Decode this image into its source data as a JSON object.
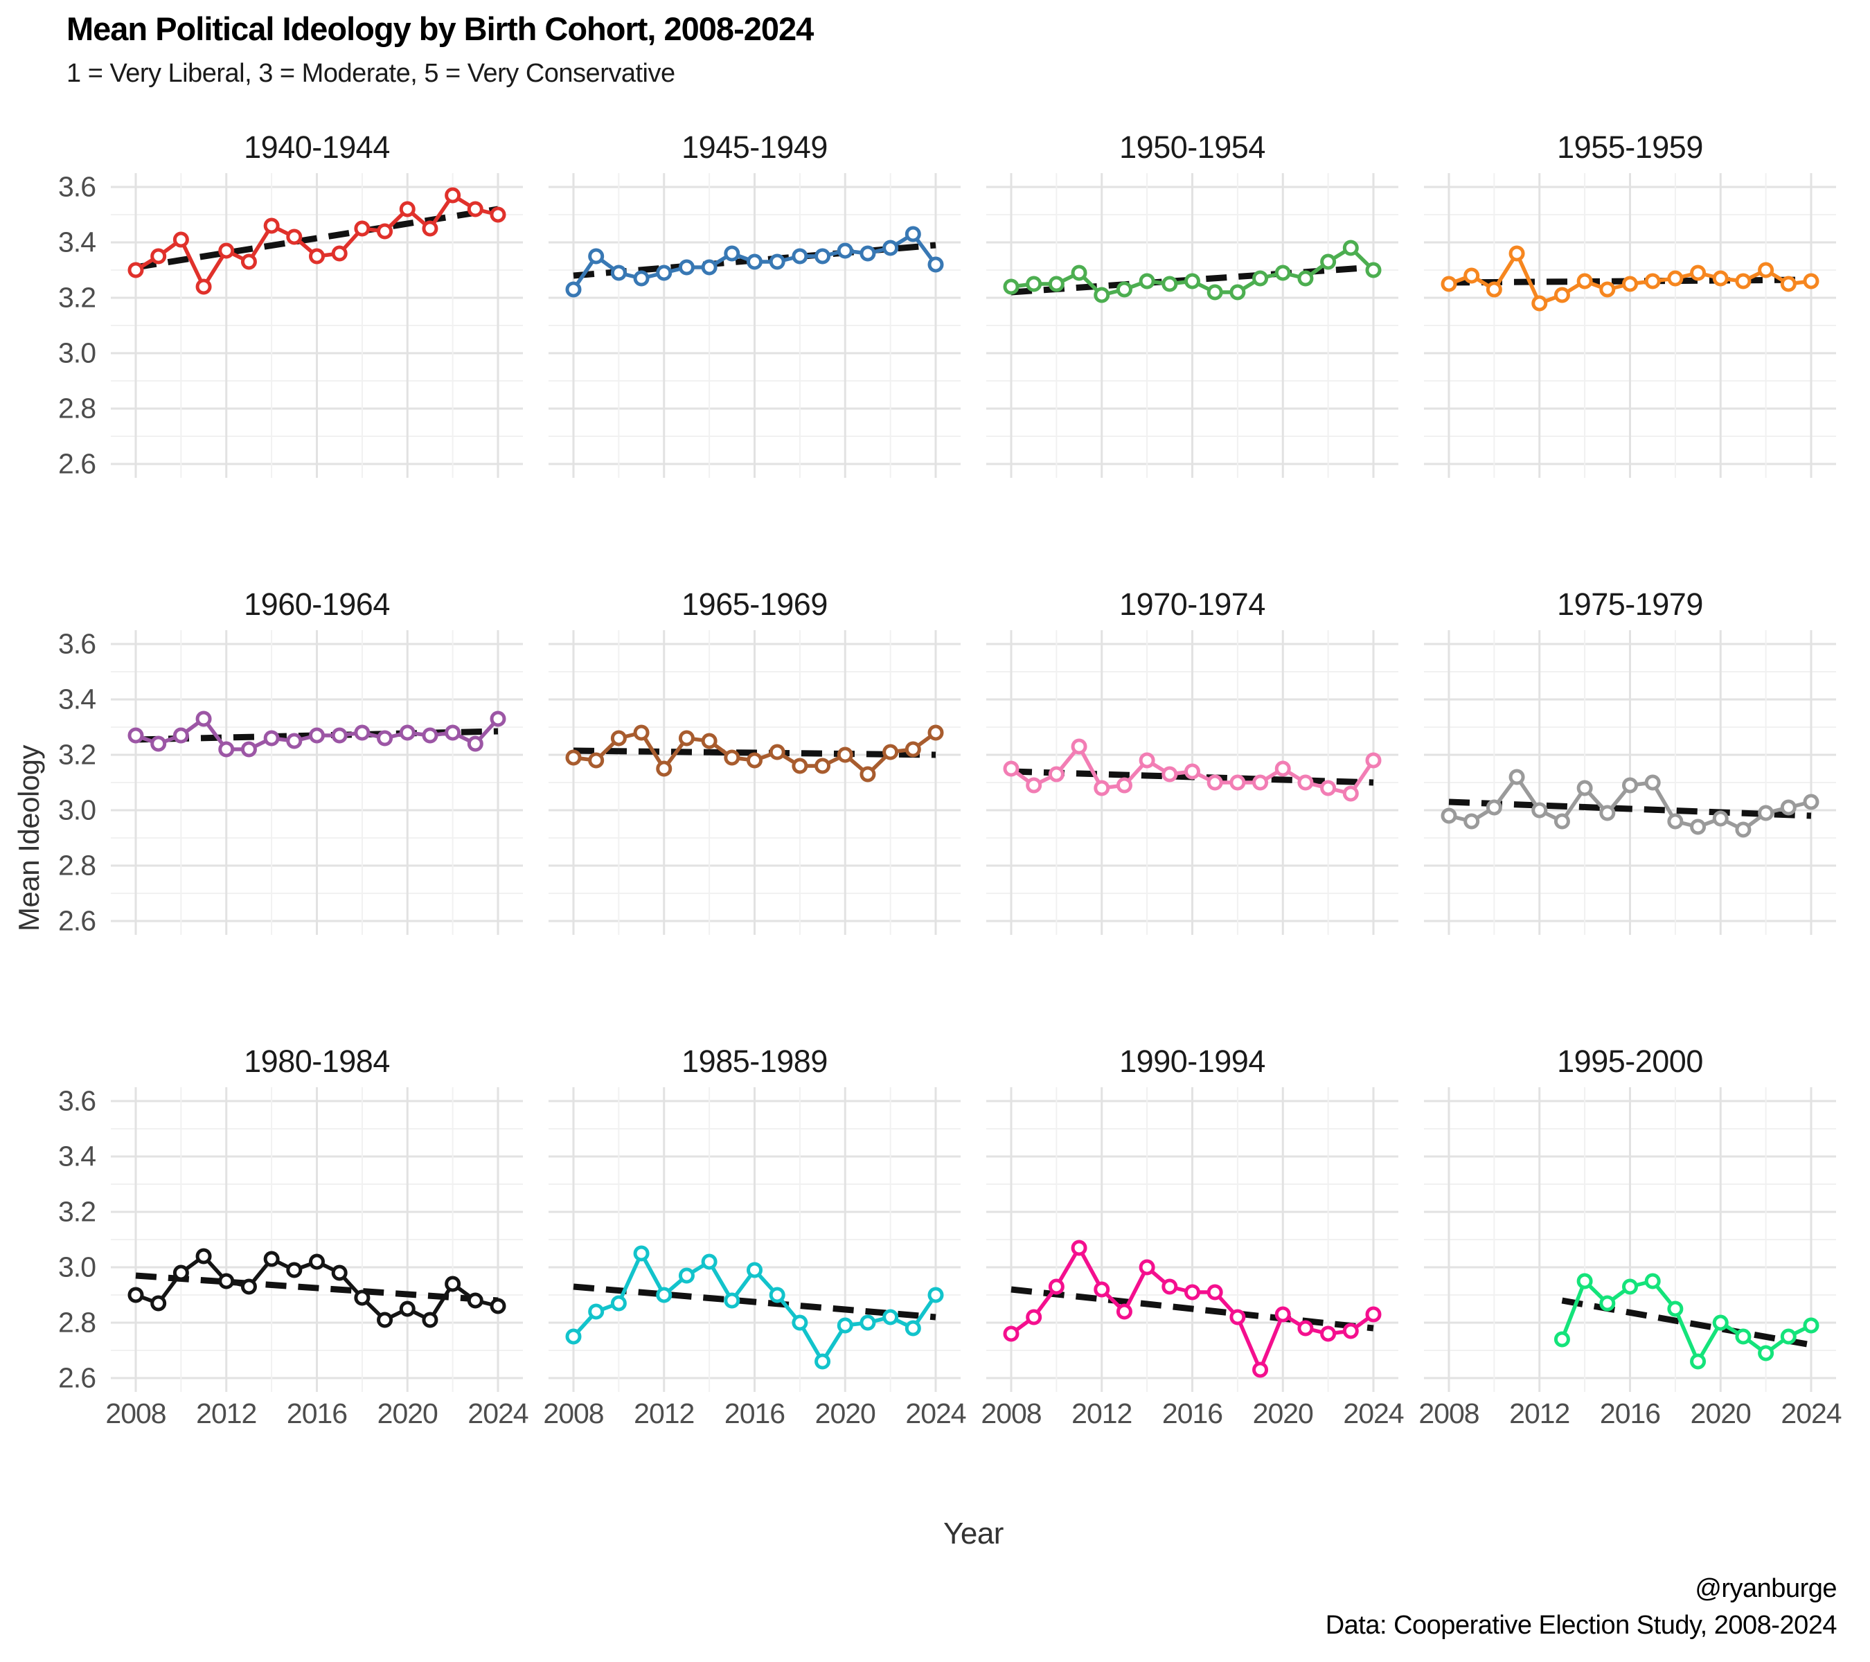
{
  "header": {
    "title": "Mean Political Ideology by Birth Cohort, 2008-2024",
    "subtitle": "1 = Very Liberal, 3 = Moderate, 5 = Very Conservative"
  },
  "axes": {
    "x_label": "Year",
    "y_label": "Mean Ideology",
    "x_ticks": [
      "2008",
      "2012",
      "2016",
      "2020",
      "2024"
    ],
    "y_ticks": [
      "3.6",
      "3.4",
      "3.2",
      "3.0",
      "2.8",
      "2.6"
    ]
  },
  "footer": {
    "handle": "@ryanburge",
    "source": "Data: Cooperative Election Study, 2008-2024"
  },
  "chart_data": {
    "type": "line",
    "small_multiples": true,
    "grid": "on",
    "x_range": [
      2008,
      2024
    ],
    "y_axis": {
      "min": 2.6,
      "max": 3.6,
      "major_step": 0.2,
      "minor_step": 0.1
    },
    "marker": "open-circle",
    "trend_line_style": "black-dashed-linear-fit",
    "facets": [
      {
        "label": "1940-1944",
        "color": "#E0312B",
        "years": [
          2008,
          2009,
          2010,
          2011,
          2012,
          2013,
          2014,
          2015,
          2016,
          2017,
          2018,
          2019,
          2020,
          2021,
          2022,
          2023,
          2024
        ],
        "values": [
          3.3,
          3.35,
          3.41,
          3.24,
          3.37,
          3.33,
          3.46,
          3.42,
          3.35,
          3.36,
          3.45,
          3.44,
          3.52,
          3.45,
          3.57,
          3.52,
          3.5
        ],
        "trend": {
          "x": [
            2008,
            2024
          ],
          "y": [
            3.31,
            3.52
          ]
        }
      },
      {
        "label": "1945-1949",
        "color": "#3878B4",
        "years": [
          2008,
          2009,
          2010,
          2011,
          2012,
          2013,
          2014,
          2015,
          2016,
          2017,
          2018,
          2019,
          2020,
          2021,
          2022,
          2023,
          2024
        ],
        "values": [
          3.23,
          3.35,
          3.29,
          3.27,
          3.29,
          3.31,
          3.31,
          3.36,
          3.33,
          3.33,
          3.35,
          3.35,
          3.37,
          3.36,
          3.38,
          3.43,
          3.32
        ],
        "trend": {
          "x": [
            2008,
            2024
          ],
          "y": [
            3.28,
            3.39
          ]
        }
      },
      {
        "label": "1950-1954",
        "color": "#4CAE50",
        "years": [
          2008,
          2009,
          2010,
          2011,
          2012,
          2013,
          2014,
          2015,
          2016,
          2017,
          2018,
          2019,
          2020,
          2021,
          2022,
          2023,
          2024
        ],
        "values": [
          3.24,
          3.25,
          3.25,
          3.29,
          3.21,
          3.23,
          3.26,
          3.25,
          3.26,
          3.22,
          3.22,
          3.27,
          3.29,
          3.27,
          3.33,
          3.38,
          3.3
        ],
        "trend": {
          "x": [
            2008,
            2024
          ],
          "y": [
            3.22,
            3.31
          ]
        }
      },
      {
        "label": "1955-1959",
        "color": "#F6861F",
        "years": [
          2008,
          2009,
          2010,
          2011,
          2012,
          2013,
          2014,
          2015,
          2016,
          2017,
          2018,
          2019,
          2020,
          2021,
          2022,
          2023,
          2024
        ],
        "values": [
          3.25,
          3.28,
          3.23,
          3.36,
          3.18,
          3.21,
          3.26,
          3.23,
          3.25,
          3.26,
          3.27,
          3.29,
          3.27,
          3.26,
          3.3,
          3.25,
          3.26
        ],
        "trend": {
          "x": [
            2008,
            2024
          ],
          "y": [
            3.255,
            3.265
          ]
        }
      },
      {
        "label": "1960-1964",
        "color": "#9C56A5",
        "years": [
          2008,
          2009,
          2010,
          2011,
          2012,
          2013,
          2014,
          2015,
          2016,
          2017,
          2018,
          2019,
          2020,
          2021,
          2022,
          2023,
          2024
        ],
        "values": [
          3.27,
          3.24,
          3.27,
          3.33,
          3.22,
          3.22,
          3.26,
          3.25,
          3.27,
          3.27,
          3.28,
          3.26,
          3.28,
          3.27,
          3.28,
          3.24,
          3.33
        ],
        "trend": {
          "x": [
            2008,
            2024
          ],
          "y": [
            3.255,
            3.285
          ]
        }
      },
      {
        "label": "1965-1969",
        "color": "#A85C2E",
        "years": [
          2008,
          2009,
          2010,
          2011,
          2012,
          2013,
          2014,
          2015,
          2016,
          2017,
          2018,
          2019,
          2020,
          2021,
          2022,
          2023,
          2024
        ],
        "values": [
          3.19,
          3.18,
          3.26,
          3.28,
          3.15,
          3.26,
          3.25,
          3.19,
          3.18,
          3.21,
          3.16,
          3.16,
          3.2,
          3.13,
          3.21,
          3.22,
          3.28
        ],
        "trend": {
          "x": [
            2008,
            2024
          ],
          "y": [
            3.215,
            3.2
          ]
        }
      },
      {
        "label": "1970-1974",
        "color": "#F27DB4",
        "years": [
          2008,
          2009,
          2010,
          2011,
          2012,
          2013,
          2014,
          2015,
          2016,
          2017,
          2018,
          2019,
          2020,
          2021,
          2022,
          2023,
          2024
        ],
        "values": [
          3.15,
          3.09,
          3.13,
          3.23,
          3.08,
          3.09,
          3.18,
          3.13,
          3.14,
          3.1,
          3.1,
          3.1,
          3.15,
          3.1,
          3.08,
          3.06,
          3.18
        ],
        "trend": {
          "x": [
            2008,
            2024
          ],
          "y": [
            3.14,
            3.1
          ]
        }
      },
      {
        "label": "1975-1979",
        "color": "#9A9A9A",
        "years": [
          2008,
          2009,
          2010,
          2011,
          2012,
          2013,
          2014,
          2015,
          2016,
          2017,
          2018,
          2019,
          2020,
          2021,
          2022,
          2023,
          2024
        ],
        "values": [
          2.98,
          2.96,
          3.01,
          3.12,
          3.0,
          2.96,
          3.08,
          2.99,
          3.09,
          3.1,
          2.96,
          2.94,
          2.97,
          2.93,
          2.99,
          3.01,
          3.03
        ],
        "trend": {
          "x": [
            2008,
            2024
          ],
          "y": [
            3.03,
            2.98
          ]
        }
      },
      {
        "label": "1980-1984",
        "color": "#141414",
        "years": [
          2008,
          2009,
          2010,
          2011,
          2012,
          2013,
          2014,
          2015,
          2016,
          2017,
          2018,
          2019,
          2020,
          2021,
          2022,
          2023,
          2024
        ],
        "values": [
          2.9,
          2.87,
          2.98,
          3.04,
          2.95,
          2.93,
          3.03,
          2.99,
          3.02,
          2.98,
          2.89,
          2.81,
          2.85,
          2.81,
          2.94,
          2.88,
          2.86
        ],
        "trend": {
          "x": [
            2008,
            2024
          ],
          "y": [
            2.97,
            2.88
          ]
        }
      },
      {
        "label": "1985-1989",
        "color": "#12C3CB",
        "years": [
          2008,
          2009,
          2010,
          2011,
          2012,
          2013,
          2014,
          2015,
          2016,
          2017,
          2018,
          2019,
          2020,
          2021,
          2022,
          2023,
          2024
        ],
        "values": [
          2.75,
          2.84,
          2.87,
          3.05,
          2.9,
          2.97,
          3.02,
          2.88,
          2.99,
          2.9,
          2.8,
          2.66,
          2.79,
          2.8,
          2.82,
          2.78,
          2.9
        ],
        "trend": {
          "x": [
            2008,
            2024
          ],
          "y": [
            2.93,
            2.82
          ]
        }
      },
      {
        "label": "1990-1994",
        "color": "#F40F8E",
        "years": [
          2008,
          2009,
          2010,
          2011,
          2012,
          2013,
          2014,
          2015,
          2016,
          2017,
          2018,
          2019,
          2020,
          2021,
          2022,
          2023,
          2024
        ],
        "values": [
          2.76,
          2.82,
          2.93,
          3.07,
          2.92,
          2.84,
          3.0,
          2.93,
          2.91,
          2.91,
          2.82,
          2.63,
          2.83,
          2.78,
          2.76,
          2.77,
          2.83
        ],
        "trend": {
          "x": [
            2008,
            2024
          ],
          "y": [
            2.92,
            2.78
          ]
        }
      },
      {
        "label": "1995-2000",
        "color": "#14E37A",
        "years": [
          2013,
          2014,
          2015,
          2016,
          2017,
          2018,
          2019,
          2020,
          2021,
          2022,
          2023,
          2024
        ],
        "values": [
          2.74,
          2.95,
          2.87,
          2.93,
          2.95,
          2.85,
          2.66,
          2.8,
          2.75,
          2.69,
          2.75,
          2.79
        ],
        "trend": {
          "x": [
            2013,
            2024
          ],
          "y": [
            2.88,
            2.72
          ]
        }
      }
    ]
  }
}
